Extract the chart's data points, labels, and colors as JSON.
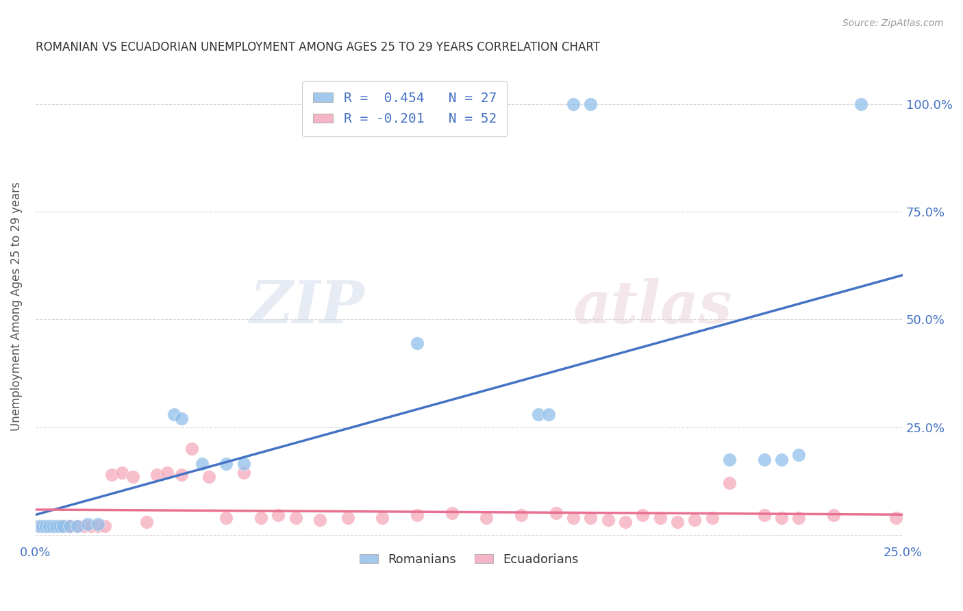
{
  "title": "ROMANIAN VS ECUADORIAN UNEMPLOYMENT AMONG AGES 25 TO 29 YEARS CORRELATION CHART",
  "source": "Source: ZipAtlas.com",
  "ylabel": "Unemployment Among Ages 25 to 29 years",
  "xlim": [
    0.0,
    0.25
  ],
  "ylim": [
    -0.02,
    1.08
  ],
  "xticks": [
    0.0,
    0.05,
    0.1,
    0.15,
    0.2,
    0.25
  ],
  "xticklabels": [
    "0.0%",
    "",
    "",
    "",
    "",
    "25.0%"
  ],
  "yticks": [
    0.0,
    0.25,
    0.5,
    0.75,
    1.0
  ],
  "right_yticklabels": [
    "",
    "25.0%",
    "50.0%",
    "75.0%",
    "100.0%"
  ],
  "romanian_color": "#92C0EA",
  "ecuadorian_color": "#F5A8BC",
  "blue_line_color": "#4472C4",
  "pink_line_color": "#E87090",
  "legend_text_color": "#4472C4",
  "legend_R_romanian": "R =  0.454   N = 27",
  "legend_R_ecuadorian": "R = -0.201   N = 52",
  "watermark_zip": "ZIP",
  "watermark_atlas": "atlas",
  "romanian_x": [
    0.001,
    0.002,
    0.003,
    0.004,
    0.005,
    0.006,
    0.007,
    0.008,
    0.01,
    0.012,
    0.015,
    0.018,
    0.04,
    0.042,
    0.048,
    0.055,
    0.06,
    0.11,
    0.145,
    0.148,
    0.155,
    0.16,
    0.2,
    0.21,
    0.215,
    0.22,
    0.238
  ],
  "romanian_y": [
    0.02,
    0.02,
    0.02,
    0.02,
    0.02,
    0.02,
    0.02,
    0.02,
    0.02,
    0.02,
    0.025,
    0.025,
    0.28,
    0.27,
    0.165,
    0.165,
    0.165,
    0.445,
    0.28,
    0.28,
    1.0,
    1.0,
    0.175,
    0.175,
    0.175,
    0.185,
    1.0
  ],
  "ecuadorian_x": [
    0.001,
    0.002,
    0.003,
    0.004,
    0.005,
    0.006,
    0.007,
    0.008,
    0.009,
    0.01,
    0.012,
    0.014,
    0.016,
    0.018,
    0.02,
    0.022,
    0.025,
    0.028,
    0.032,
    0.035,
    0.038,
    0.042,
    0.045,
    0.05,
    0.055,
    0.06,
    0.065,
    0.07,
    0.075,
    0.082,
    0.09,
    0.1,
    0.11,
    0.12,
    0.13,
    0.14,
    0.15,
    0.155,
    0.16,
    0.165,
    0.17,
    0.175,
    0.18,
    0.185,
    0.19,
    0.195,
    0.2,
    0.21,
    0.215,
    0.22,
    0.23,
    0.248
  ],
  "ecuadorian_y": [
    0.02,
    0.02,
    0.02,
    0.02,
    0.02,
    0.02,
    0.02,
    0.02,
    0.02,
    0.02,
    0.02,
    0.02,
    0.02,
    0.02,
    0.02,
    0.14,
    0.145,
    0.135,
    0.03,
    0.14,
    0.145,
    0.14,
    0.2,
    0.135,
    0.04,
    0.145,
    0.04,
    0.045,
    0.04,
    0.035,
    0.04,
    0.04,
    0.045,
    0.05,
    0.04,
    0.045,
    0.05,
    0.04,
    0.04,
    0.035,
    0.03,
    0.045,
    0.04,
    0.03,
    0.035,
    0.04,
    0.12,
    0.045,
    0.04,
    0.04,
    0.045,
    0.04
  ]
}
